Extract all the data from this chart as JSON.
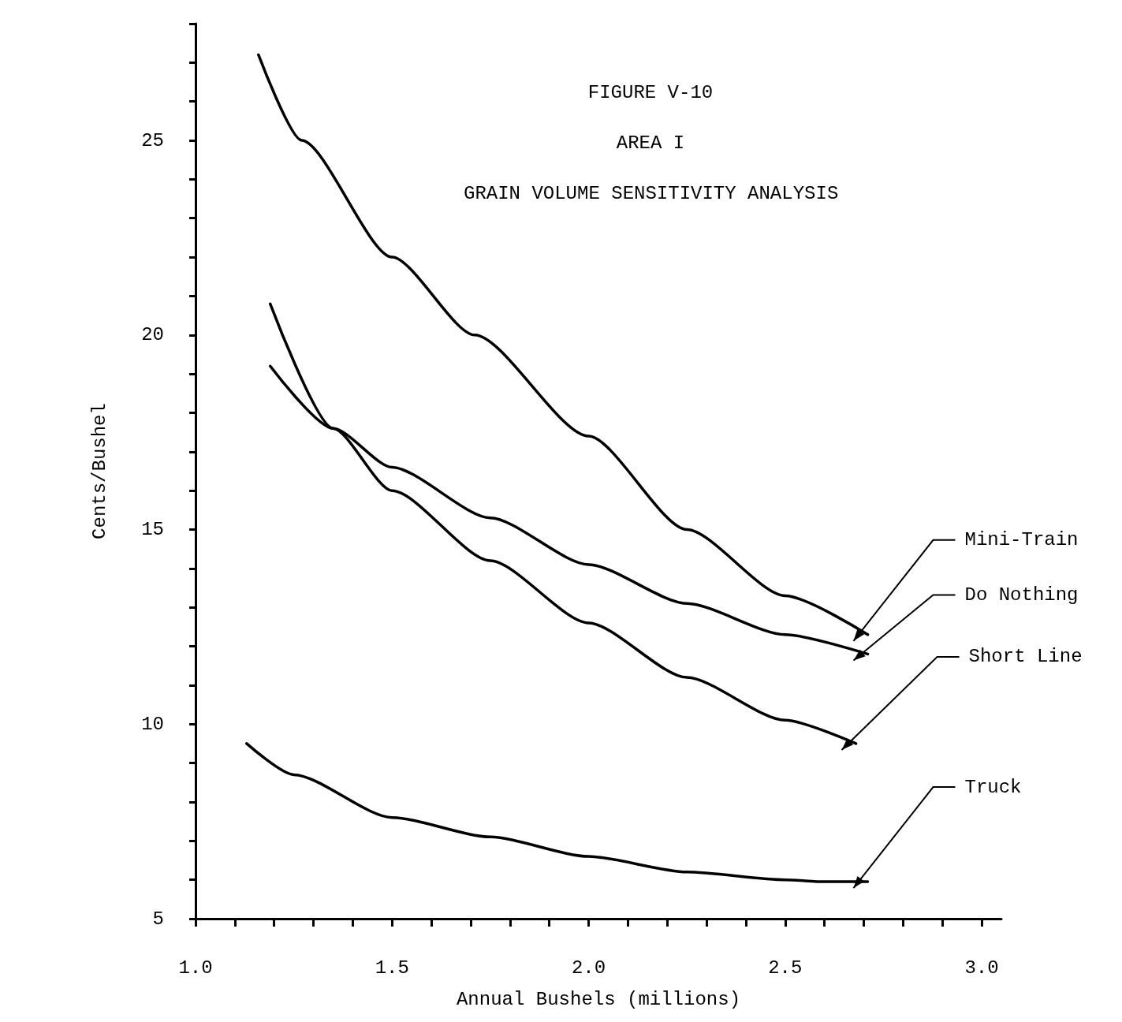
{
  "chart_data": {
    "type": "line",
    "title": "FIGURE V-10",
    "subtitle": "AREA I",
    "annotations": [
      "GRAIN VOLUME SENSITIVITY ANALYSIS"
    ],
    "xlabel": "Annual Bushels (millions)",
    "ylabel": "Cents/Bushel",
    "xlim": [
      1.0,
      3.05
    ],
    "ylim": [
      5,
      28
    ],
    "xticks": [
      {
        "value": 1.0,
        "label": "1.0"
      },
      {
        "value": 1.1,
        "label": null
      },
      {
        "value": 1.2,
        "label": null
      },
      {
        "value": 1.3,
        "label": null
      },
      {
        "value": 1.4,
        "label": null
      },
      {
        "value": 1.5,
        "label": "1.5"
      },
      {
        "value": 1.6,
        "label": null
      },
      {
        "value": 1.7,
        "label": null
      },
      {
        "value": 1.8,
        "label": null
      },
      {
        "value": 1.9,
        "label": null
      },
      {
        "value": 2.0,
        "label": "2.0"
      },
      {
        "value": 2.1,
        "label": null
      },
      {
        "value": 2.2,
        "label": null
      },
      {
        "value": 2.3,
        "label": null
      },
      {
        "value": 2.4,
        "label": null
      },
      {
        "value": 2.5,
        "label": "2.5"
      },
      {
        "value": 2.6,
        "label": null
      },
      {
        "value": 2.7,
        "label": null
      },
      {
        "value": 2.8,
        "label": null
      },
      {
        "value": 2.9,
        "label": null
      },
      {
        "value": 3.0,
        "label": "3.0"
      }
    ],
    "yticks": [
      5,
      {
        "value": 6,
        "label": null
      },
      {
        "value": 7,
        "label": null
      },
      {
        "value": 8,
        "label": null
      },
      {
        "value": 9,
        "label": null
      },
      10,
      {
        "value": 11,
        "label": null
      },
      {
        "value": 12,
        "label": null
      },
      {
        "value": 13,
        "label": null
      },
      {
        "value": 14,
        "label": null
      },
      15,
      {
        "value": 16,
        "label": null
      },
      {
        "value": 17,
        "label": null
      },
      {
        "value": 18,
        "label": null
      },
      {
        "value": 19,
        "label": null
      },
      20,
      {
        "value": 21,
        "label": null
      },
      {
        "value": 22,
        "label": null
      },
      {
        "value": 23,
        "label": null
      },
      {
        "value": 24,
        "label": null
      },
      25,
      {
        "value": 26,
        "label": null
      },
      {
        "value": 27,
        "label": null
      },
      {
        "value": 28,
        "label": null
      }
    ],
    "grid": false,
    "legend": false,
    "marker": "none",
    "line_style": "solid",
    "series": [
      {
        "name": "Mini-Train",
        "color": "#000000",
        "x": [
          1.16,
          1.27,
          1.5,
          1.71,
          2.0,
          2.25,
          2.5,
          2.71
        ],
        "values": [
          27.2,
          25,
          22.0,
          20,
          17.4,
          15,
          13.3,
          12.3
        ]
      },
      {
        "name": "Do Nothing",
        "color": "#000000",
        "x": [
          1.19,
          1.35,
          1.5,
          1.75,
          2.0,
          2.25,
          2.5,
          2.71
        ],
        "values": [
          19.2,
          17.6,
          16.6,
          15.3,
          14.1,
          13.1,
          12.3,
          11.8
        ]
      },
      {
        "name": "Short Line",
        "color": "#000000",
        "x": [
          1.19,
          1.35,
          1.5,
          1.75,
          2.0,
          2.25,
          2.5,
          2.68
        ],
        "values": [
          20.8,
          17.6,
          16.0,
          14.2,
          12.6,
          11.2,
          10.1,
          9.5
        ]
      },
      {
        "name": "Truck",
        "color": "#000000",
        "x": [
          1.13,
          1.25,
          1.5,
          1.75,
          2.0,
          2.25,
          2.5,
          2.6,
          2.71
        ],
        "values": [
          9.5,
          8.7,
          7.6,
          7.1,
          6.6,
          6.2,
          6.0,
          5.95,
          5.95
        ]
      }
    ]
  }
}
